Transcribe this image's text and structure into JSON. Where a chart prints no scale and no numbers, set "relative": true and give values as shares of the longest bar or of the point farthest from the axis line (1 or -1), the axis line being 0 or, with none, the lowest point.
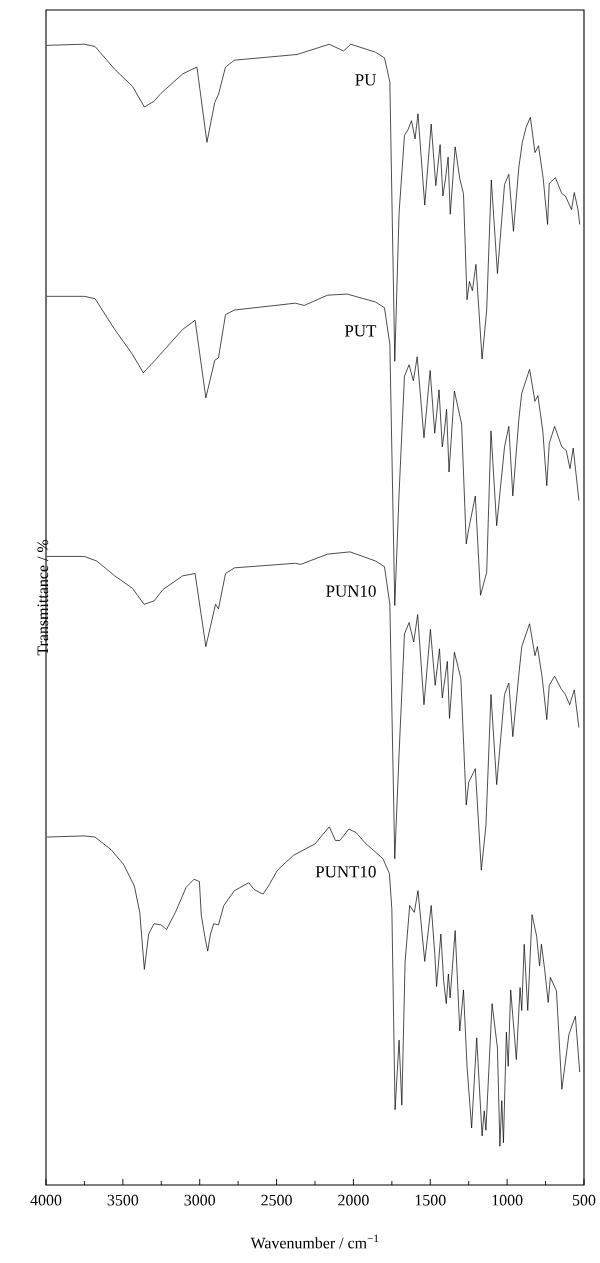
{
  "chart_data": {
    "type": "line",
    "xlabel": "Wavenumber / cm$^{−1}$",
    "ylabel": "Transmittance / %",
    "relative": true,
    "xlim": [
      4000,
      500
    ],
    "xticks": [
      4000,
      3500,
      3000,
      2500,
      2000,
      1500,
      1000,
      500
    ],
    "marker": "none",
    "line_style": "solid",
    "series": [
      {
        "name": "PU",
        "color": "#000000",
        "x": [
          3995,
          3751,
          3681,
          3553,
          3437,
          3360,
          3297,
          3251,
          3111,
          3018,
          2953,
          2902,
          2878,
          2832,
          2774,
          2366,
          2157,
          2064,
          2018,
          1856,
          1798,
          1763,
          1731,
          1703,
          1668,
          1645,
          1622,
          1599,
          1580,
          1536,
          1494,
          1464,
          1436,
          1418,
          1401,
          1384,
          1370,
          1338,
          1308,
          1284,
          1261,
          1245,
          1226,
          1203,
          1163,
          1133,
          1103,
          1063,
          1017,
          989,
          959,
          924,
          901,
          877,
          849,
          819,
          796,
          766,
          737,
          726,
          686,
          644,
          621,
          581,
          563,
          539,
          528
        ],
        "values": [
          0.999,
          1.0,
          0.998,
          0.978,
          0.963,
          0.945,
          0.95,
          0.957,
          0.974,
          0.98,
          0.914,
          0.949,
          0.956,
          0.98,
          0.986,
          0.991,
          1.0,
          0.994,
          1.0,
          0.993,
          0.988,
          0.967,
          0.722,
          0.852,
          0.92,
          0.925,
          0.933,
          0.917,
          0.939,
          0.859,
          0.93,
          0.876,
          0.912,
          0.867,
          0.882,
          0.901,
          0.851,
          0.91,
          0.882,
          0.869,
          0.776,
          0.792,
          0.784,
          0.807,
          0.724,
          0.767,
          0.881,
          0.799,
          0.877,
          0.886,
          0.836,
          0.892,
          0.914,
          0.927,
          0.936,
          0.905,
          0.911,
          0.883,
          0.842,
          0.878,
          0.883,
          0.869,
          0.867,
          0.855,
          0.87,
          0.855,
          0.842
        ]
      },
      {
        "name": "PUT",
        "color": "#000000",
        "x": [
          3995,
          3751,
          3681,
          3553,
          3437,
          3367,
          3297,
          3111,
          3030,
          2960,
          2902,
          2878,
          2832,
          2774,
          2378,
          2320,
          2169,
          2041,
          1856,
          1798,
          1763,
          1731,
          1703,
          1668,
          1638,
          1610,
          1585,
          1541,
          1501,
          1471,
          1443,
          1422,
          1408,
          1394,
          1378,
          1343,
          1296,
          1266,
          1250,
          1207,
          1173,
          1133,
          1105,
          1068,
          1017,
          989,
          963,
          924,
          905,
          854,
          819,
          800,
          768,
          742,
          726,
          691,
          644,
          616,
          591,
          570,
          533
        ],
        "values": [
          0.779,
          0.779,
          0.777,
          0.75,
          0.728,
          0.712,
          0.722,
          0.75,
          0.758,
          0.69,
          0.723,
          0.725,
          0.763,
          0.767,
          0.773,
          0.771,
          0.78,
          0.781,
          0.774,
          0.769,
          0.737,
          0.508,
          0.606,
          0.709,
          0.719,
          0.705,
          0.726,
          0.655,
          0.714,
          0.659,
          0.697,
          0.647,
          0.661,
          0.68,
          0.625,
          0.696,
          0.667,
          0.562,
          0.575,
          0.604,
          0.517,
          0.537,
          0.661,
          0.578,
          0.647,
          0.665,
          0.604,
          0.671,
          0.694,
          0.715,
          0.687,
          0.692,
          0.661,
          0.613,
          0.65,
          0.665,
          0.647,
          0.644,
          0.628,
          0.646,
          0.6
        ]
      },
      {
        "name": "PUN10",
        "color": "#000000",
        "x": [
          3995,
          3751,
          3670,
          3553,
          3437,
          3362,
          3297,
          3239,
          3111,
          3030,
          2960,
          2897,
          2878,
          2832,
          2774,
          2378,
          2343,
          2169,
          2022,
          1856,
          1798,
          1763,
          1731,
          1703,
          1668,
          1638,
          1608,
          1582,
          1541,
          1499,
          1468,
          1440,
          1422,
          1389,
          1375,
          1343,
          1301,
          1266,
          1250,
          1207,
          1168,
          1138,
          1105,
          1068,
          1017,
          989,
          963,
          924,
          905,
          854,
          819,
          803,
          773,
          742,
          726,
          691,
          649,
          621,
          593,
          563,
          533
        ],
        "values": [
          0.551,
          0.551,
          0.547,
          0.534,
          0.523,
          0.509,
          0.512,
          0.522,
          0.534,
          0.536,
          0.472,
          0.509,
          0.505,
          0.536,
          0.541,
          0.545,
          0.544,
          0.553,
          0.555,
          0.547,
          0.542,
          0.509,
          0.286,
          0.378,
          0.483,
          0.493,
          0.476,
          0.5,
          0.421,
          0.487,
          0.438,
          0.47,
          0.427,
          0.459,
          0.409,
          0.467,
          0.444,
          0.333,
          0.353,
          0.365,
          0.276,
          0.315,
          0.43,
          0.351,
          0.43,
          0.44,
          0.393,
          0.447,
          0.472,
          0.492,
          0.464,
          0.472,
          0.446,
          0.408,
          0.438,
          0.446,
          0.435,
          0.43,
          0.421,
          0.434,
          0.401
        ]
      },
      {
        "name": "PUNT10",
        "color": "#000000",
        "x": [
          3995,
          3751,
          3681,
          3577,
          3495,
          3425,
          3390,
          3360,
          3332,
          3297,
          3251,
          3216,
          3158,
          3088,
          3037,
          3002,
          2990,
          2967,
          2948,
          2930,
          2909,
          2878,
          2843,
          2774,
          2681,
          2646,
          2588,
          2553,
          2494,
          2390,
          2250,
          2157,
          2117,
          2088,
          2030,
          1983,
          1925,
          1808,
          1766,
          1750,
          1729,
          1703,
          1685,
          1664,
          1634,
          1604,
          1580,
          1536,
          1494,
          1471,
          1459,
          1431,
          1413,
          1396,
          1382,
          1371,
          1338,
          1308,
          1284,
          1261,
          1231,
          1198,
          1163,
          1149,
          1138,
          1098,
          1063,
          1047,
          1035,
          1024,
          1005,
          993,
          977,
          940,
          916,
          905,
          889,
          866,
          838,
          808,
          789,
          777,
          756,
          733,
          719,
          679,
          644,
          598,
          556,
          528
        ],
        "values": [
          0.305,
          0.306,
          0.305,
          0.294,
          0.281,
          0.262,
          0.239,
          0.189,
          0.22,
          0.229,
          0.228,
          0.224,
          0.239,
          0.261,
          0.268,
          0.266,
          0.237,
          0.218,
          0.205,
          0.22,
          0.229,
          0.228,
          0.245,
          0.258,
          0.265,
          0.259,
          0.255,
          0.262,
          0.276,
          0.289,
          0.299,
          0.314,
          0.302,
          0.302,
          0.312,
          0.309,
          0.3,
          0.286,
          0.273,
          0.242,
          0.066,
          0.127,
          0.07,
          0.195,
          0.245,
          0.239,
          0.258,
          0.196,
          0.245,
          0.203,
          0.174,
          0.22,
          0.179,
          0.159,
          0.185,
          0.164,
          0.223,
          0.135,
          0.171,
          0.104,
          0.05,
          0.129,
          0.043,
          0.065,
          0.048,
          0.159,
          0.12,
          0.034,
          0.074,
          0.037,
          0.134,
          0.104,
          0.171,
          0.11,
          0.173,
          0.153,
          0.211,
          0.153,
          0.237,
          0.218,
          0.192,
          0.211,
          0.189,
          0.16,
          0.182,
          0.17,
          0.084,
          0.132,
          0.148,
          0.099
        ]
      }
    ]
  }
}
